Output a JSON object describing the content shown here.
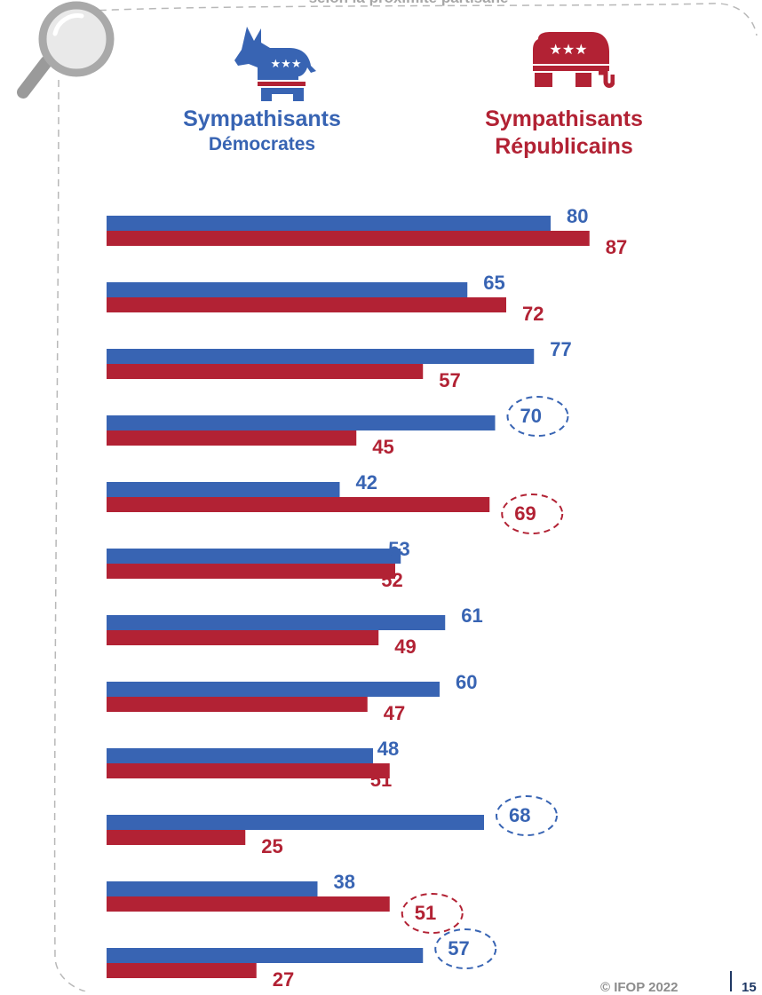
{
  "header": {
    "subtitle": "selon la proximité partisane"
  },
  "groups": {
    "democrats": {
      "line1": "Sympathisants",
      "line2": "Démocrates",
      "icon": "donkey-icon",
      "color": "#3864b3"
    },
    "republicans": {
      "line1": "Sympathisants",
      "line2": "Républicains",
      "icon": "elephant-icon",
      "color": "#b22234"
    }
  },
  "footer": {
    "copyright": "© IFOP 2022",
    "page": "15"
  },
  "chart_data": {
    "type": "bar",
    "orientation": "horizontal",
    "categories": [
      "",
      "",
      "",
      "",
      "",
      "",
      "",
      "",
      "",
      "",
      "",
      ""
    ],
    "series": [
      {
        "name": "Sympathisants Démocrates",
        "color": "#3864b3",
        "values": [
          80,
          65,
          77,
          70,
          42,
          53,
          61,
          60,
          48,
          68,
          38,
          57
        ]
      },
      {
        "name": "Sympathisants Républicains",
        "color": "#b22234",
        "values": [
          87,
          72,
          57,
          45,
          69,
          52,
          49,
          47,
          51,
          25,
          51,
          27
        ]
      }
    ],
    "highlighted": [
      {
        "row": 3,
        "series": 0
      },
      {
        "row": 4,
        "series": 1
      },
      {
        "row": 9,
        "series": 0
      },
      {
        "row": 10,
        "series": 1
      },
      {
        "row": 11,
        "series": 0
      }
    ],
    "xlim": [
      0,
      100
    ],
    "grid": false,
    "axes_visible": false
  }
}
